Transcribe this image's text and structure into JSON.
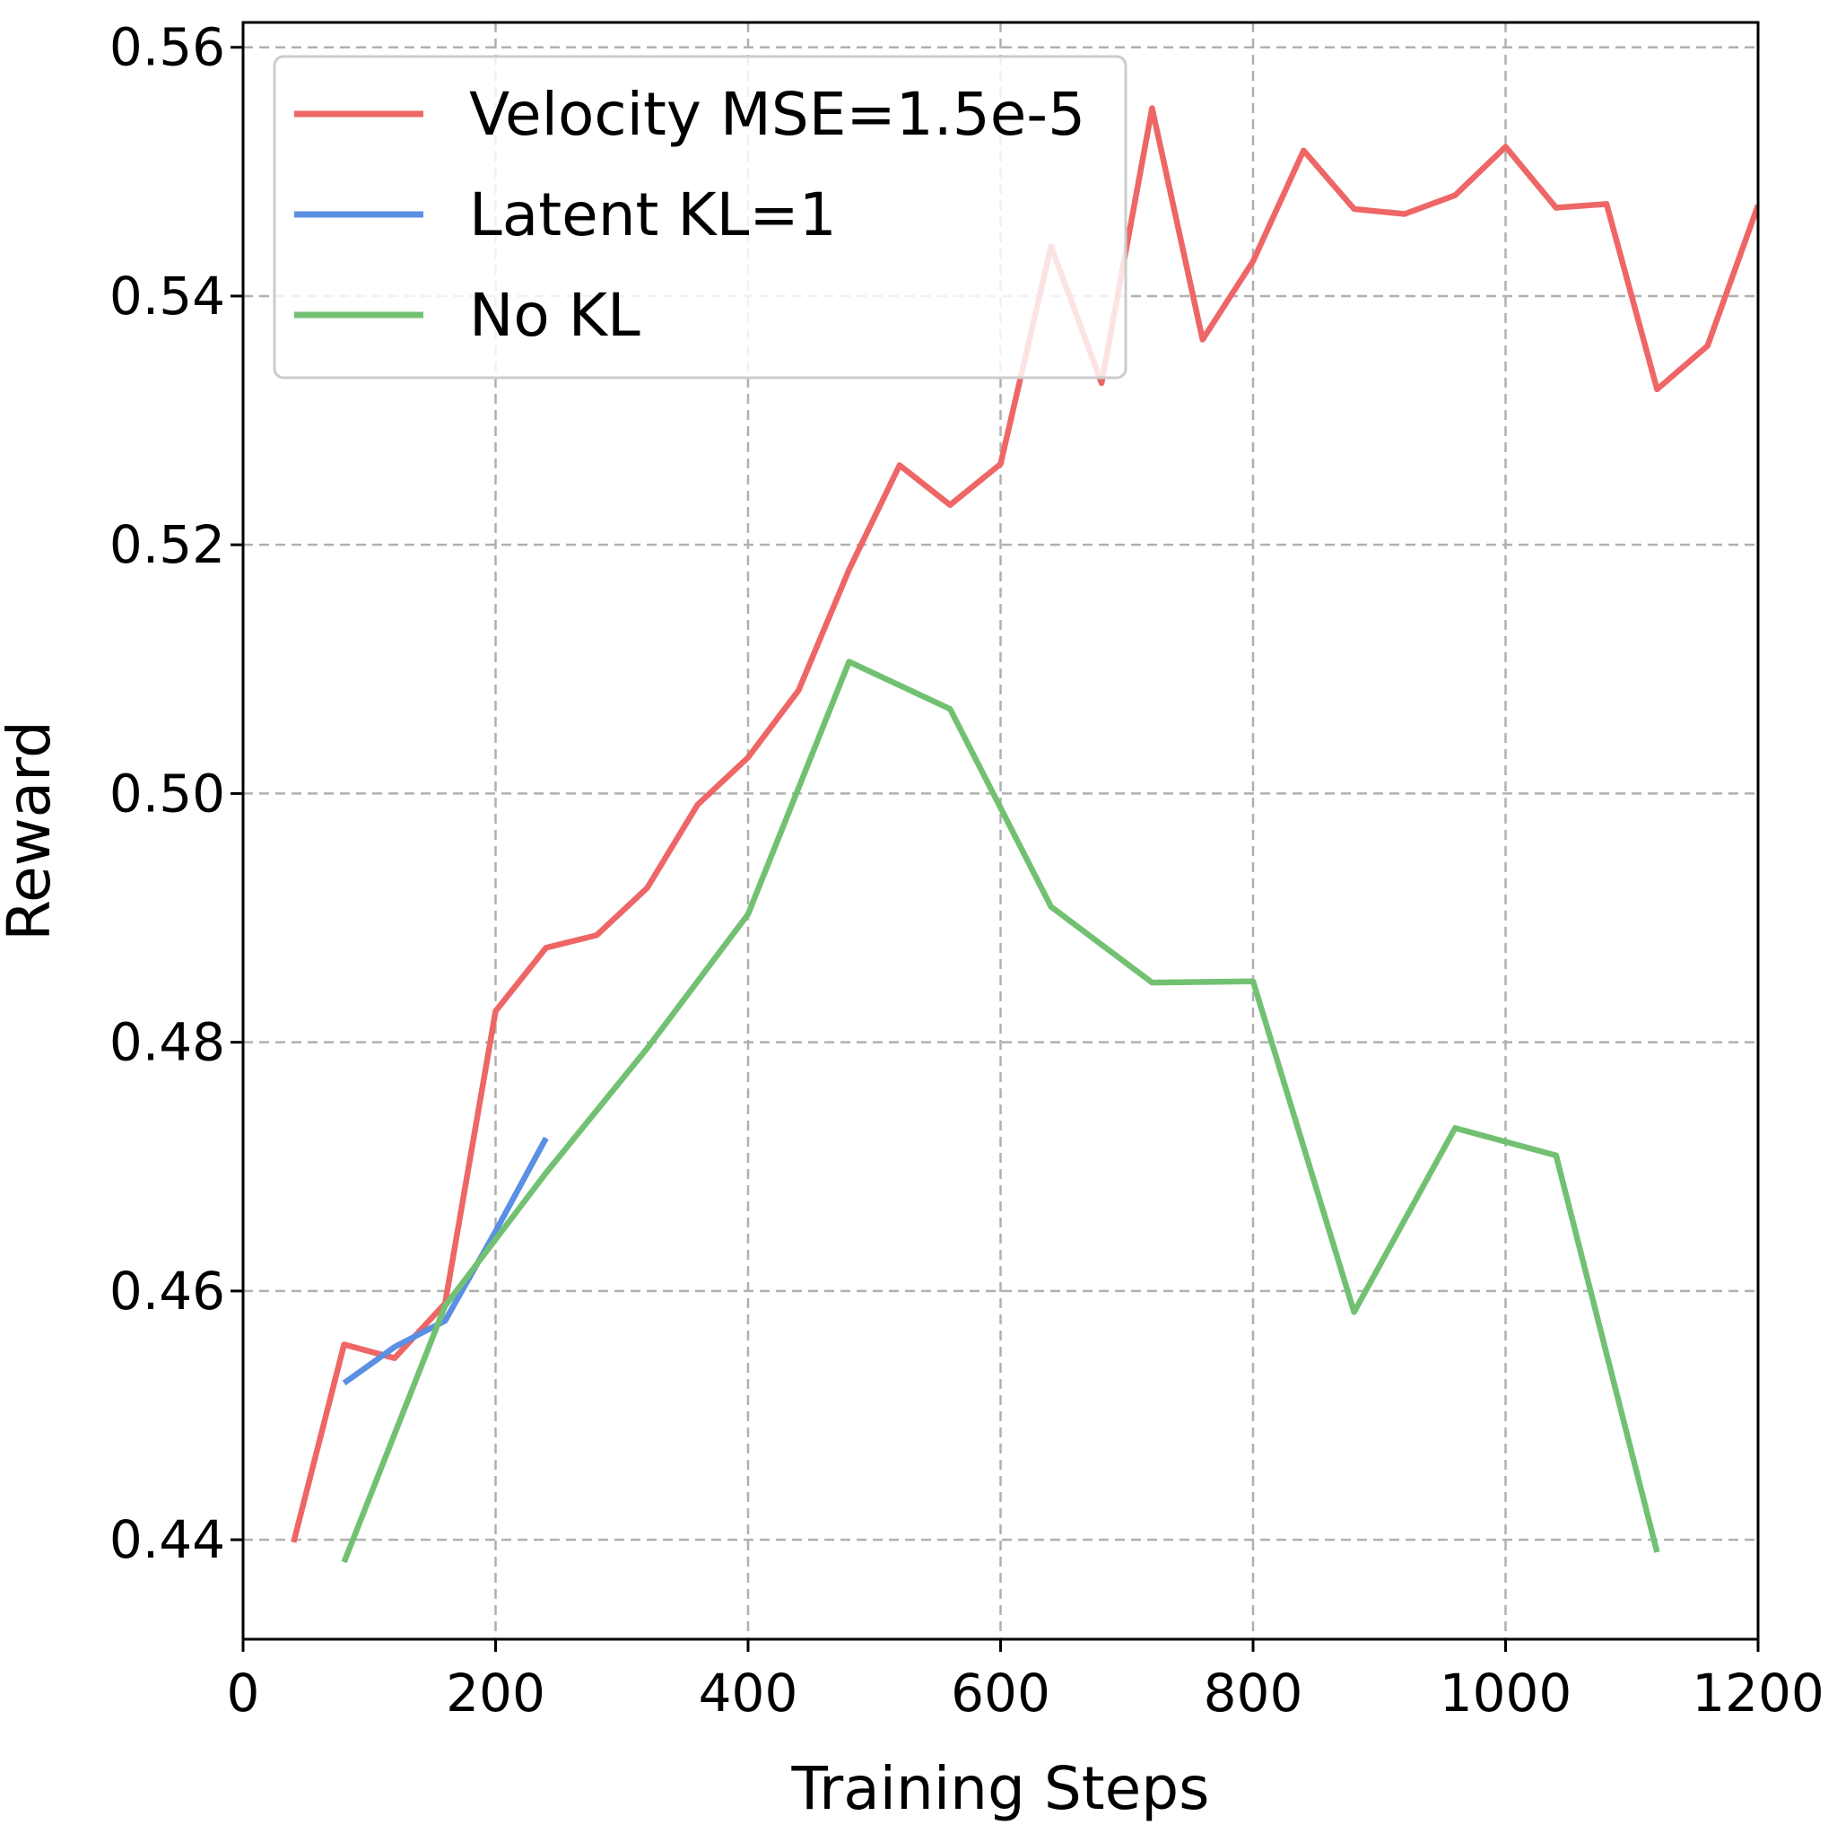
{
  "chart_data": {
    "type": "line",
    "title": "",
    "xlabel": "Training Steps",
    "ylabel": "Reward",
    "xlim": [
      0,
      1200
    ],
    "ylim": [
      0.432,
      0.562
    ],
    "xticks": [
      0,
      200,
      400,
      600,
      800,
      1000,
      1200
    ],
    "xtick_labels": [
      "0",
      "200",
      "400",
      "600",
      "800",
      "1000",
      "1200"
    ],
    "yticks": [
      0.44,
      0.46,
      0.48,
      0.5,
      0.52,
      0.54,
      0.56
    ],
    "ytick_labels": [
      "0.44",
      "0.46",
      "0.48",
      "0.50",
      "0.52",
      "0.54",
      "0.56"
    ],
    "grid": true,
    "legend_position": "top-left",
    "series": [
      {
        "name": "Velocity MSE=1.5e-5",
        "color": "#ee6666",
        "x": [
          40,
          80,
          120,
          160,
          200,
          240,
          280,
          320,
          360,
          400,
          440,
          480,
          520,
          560,
          600,
          640,
          680,
          720,
          760,
          800,
          840,
          880,
          920,
          960,
          1000,
          1040,
          1080,
          1120,
          1160,
          1200
        ],
        "y": [
          0.4398,
          0.4557,
          0.4546,
          0.459,
          0.4825,
          0.4876,
          0.4886,
          0.4924,
          0.4991,
          0.5029,
          0.5083,
          0.518,
          0.5264,
          0.5232,
          0.5265,
          0.544,
          0.533,
          0.5551,
          0.5365,
          0.5428,
          0.5517,
          0.547,
          0.5466,
          0.5481,
          0.552,
          0.5471,
          0.5474,
          0.5325,
          0.536,
          0.5473
        ]
      },
      {
        "name": "Latent KL=1",
        "color": "#5b8fe3",
        "x": [
          80,
          120,
          160,
          200,
          240
        ],
        "y": [
          0.4526,
          0.4555,
          0.4576,
          0.4648,
          0.4723
        ]
      },
      {
        "name": "No KL",
        "color": "#72c172",
        "x": [
          80,
          160,
          240,
          320,
          400,
          480,
          560,
          640,
          720,
          800,
          880,
          960,
          1040,
          1120
        ],
        "y": [
          0.4382,
          0.4588,
          0.4695,
          0.4795,
          0.4903,
          0.5106,
          0.5068,
          0.4909,
          0.4848,
          0.4849,
          0.4583,
          0.4731,
          0.4709,
          0.439
        ]
      }
    ]
  }
}
